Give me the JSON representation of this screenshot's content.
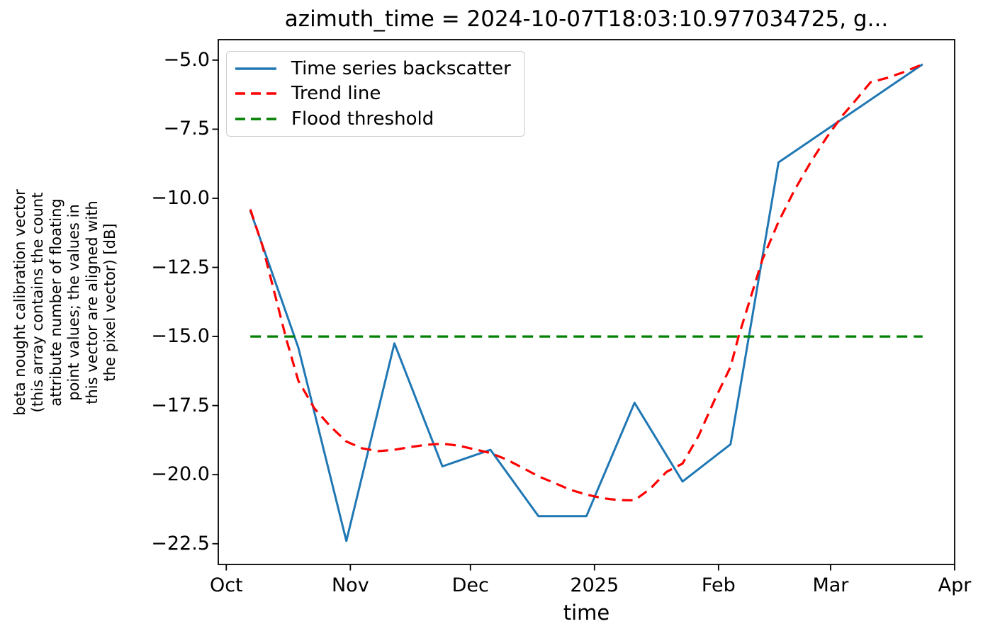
{
  "figure": {
    "background": "#ffffff"
  },
  "chart_data": {
    "type": "line",
    "title": "azimuth_time = 2024-10-07T18:03:10.977034725, g...",
    "xlabel": "time",
    "ylabel": "beta nought calibration vector\n(this array contains the count\nattribute number of floating\npoint values; the values in\nthis vector are aligned with\nthe pixel vector) [dB]",
    "grid": false,
    "legend_position": "upper left",
    "x_axis": {
      "range": [
        "2024-09-29",
        "2025-04-01"
      ],
      "tick_dates": [
        "2024-10-01",
        "2024-11-01",
        "2024-12-01",
        "2025-01-01",
        "2025-02-01",
        "2025-03-01",
        "2025-04-01"
      ],
      "tick_labels": [
        "Oct",
        "Nov",
        "Dec",
        "2025",
        "Feb",
        "Mar",
        "Apr"
      ]
    },
    "y_axis": {
      "range": [
        -23.25,
        -4.26
      ],
      "ticks": [
        -5.0,
        -7.5,
        -10.0,
        -12.5,
        -15.0,
        -17.5,
        -20.0,
        -22.5
      ],
      "unit": "dB"
    },
    "series": [
      {
        "name": "Time series backscatter",
        "color": "#1f77b4",
        "line_style": "solid",
        "line_width": 3,
        "points": [
          [
            "2024-10-07",
            -10.45
          ],
          [
            "2024-10-19",
            -15.4
          ],
          [
            "2024-10-31",
            -22.4
          ],
          [
            "2024-11-12",
            -15.25
          ],
          [
            "2024-11-24",
            -19.7
          ],
          [
            "2024-12-06",
            -19.1
          ],
          [
            "2024-12-18",
            -21.5
          ],
          [
            "2024-12-30",
            -21.5
          ],
          [
            "2025-01-11",
            -17.4
          ],
          [
            "2025-01-23",
            -20.25
          ],
          [
            "2025-02-04",
            -18.9
          ],
          [
            "2025-02-16",
            -8.7
          ],
          [
            "2025-03-24",
            -5.15
          ]
        ]
      },
      {
        "name": "Trend line",
        "color": "#ff0000",
        "line_style": "dashed",
        "line_width": 3.2,
        "points": [
          [
            "2024-10-07",
            -10.4
          ],
          [
            "2024-10-10",
            -11.7
          ],
          [
            "2024-10-13",
            -13.4
          ],
          [
            "2024-10-16",
            -15.1
          ],
          [
            "2024-10-19",
            -16.6
          ],
          [
            "2024-10-23",
            -17.6
          ],
          [
            "2024-10-27",
            -18.25
          ],
          [
            "2024-10-31",
            -18.8
          ],
          [
            "2024-11-04",
            -19.05
          ],
          [
            "2024-11-08",
            -19.15
          ],
          [
            "2024-11-12",
            -19.1
          ],
          [
            "2024-11-16",
            -19.0
          ],
          [
            "2024-11-20",
            -18.92
          ],
          [
            "2024-11-24",
            -18.88
          ],
          [
            "2024-11-28",
            -18.95
          ],
          [
            "2024-12-02",
            -19.08
          ],
          [
            "2024-12-06",
            -19.22
          ],
          [
            "2024-12-10",
            -19.45
          ],
          [
            "2024-12-14",
            -19.75
          ],
          [
            "2024-12-18",
            -20.06
          ],
          [
            "2024-12-22",
            -20.3
          ],
          [
            "2024-12-26",
            -20.55
          ],
          [
            "2024-12-30",
            -20.72
          ],
          [
            "2025-01-03",
            -20.85
          ],
          [
            "2025-01-07",
            -20.92
          ],
          [
            "2025-01-11",
            -20.93
          ],
          [
            "2025-01-15",
            -20.5
          ],
          [
            "2025-01-19",
            -19.9
          ],
          [
            "2025-01-23",
            -19.6
          ],
          [
            "2025-01-27",
            -18.6
          ],
          [
            "2025-01-31",
            -17.3
          ],
          [
            "2025-02-04",
            -16.1
          ],
          [
            "2025-02-06",
            -15.0
          ],
          [
            "2025-02-09",
            -13.6
          ],
          [
            "2025-02-12",
            -12.2
          ],
          [
            "2025-02-16",
            -10.85
          ],
          [
            "2025-02-20",
            -9.7
          ],
          [
            "2025-02-24",
            -8.7
          ],
          [
            "2025-02-28",
            -7.8
          ],
          [
            "2025-03-04",
            -7.0
          ],
          [
            "2025-03-07",
            -6.5
          ],
          [
            "2025-03-11",
            -5.8
          ],
          [
            "2025-03-15",
            -5.65
          ],
          [
            "2025-03-19",
            -5.45
          ],
          [
            "2025-03-24",
            -5.15
          ]
        ]
      },
      {
        "name": "Flood threshold",
        "color": "#008000",
        "line_style": "dashed",
        "line_width": 3.2,
        "points": [
          [
            "2024-10-07",
            -15.0
          ],
          [
            "2025-03-24",
            -15.0
          ]
        ]
      }
    ]
  }
}
